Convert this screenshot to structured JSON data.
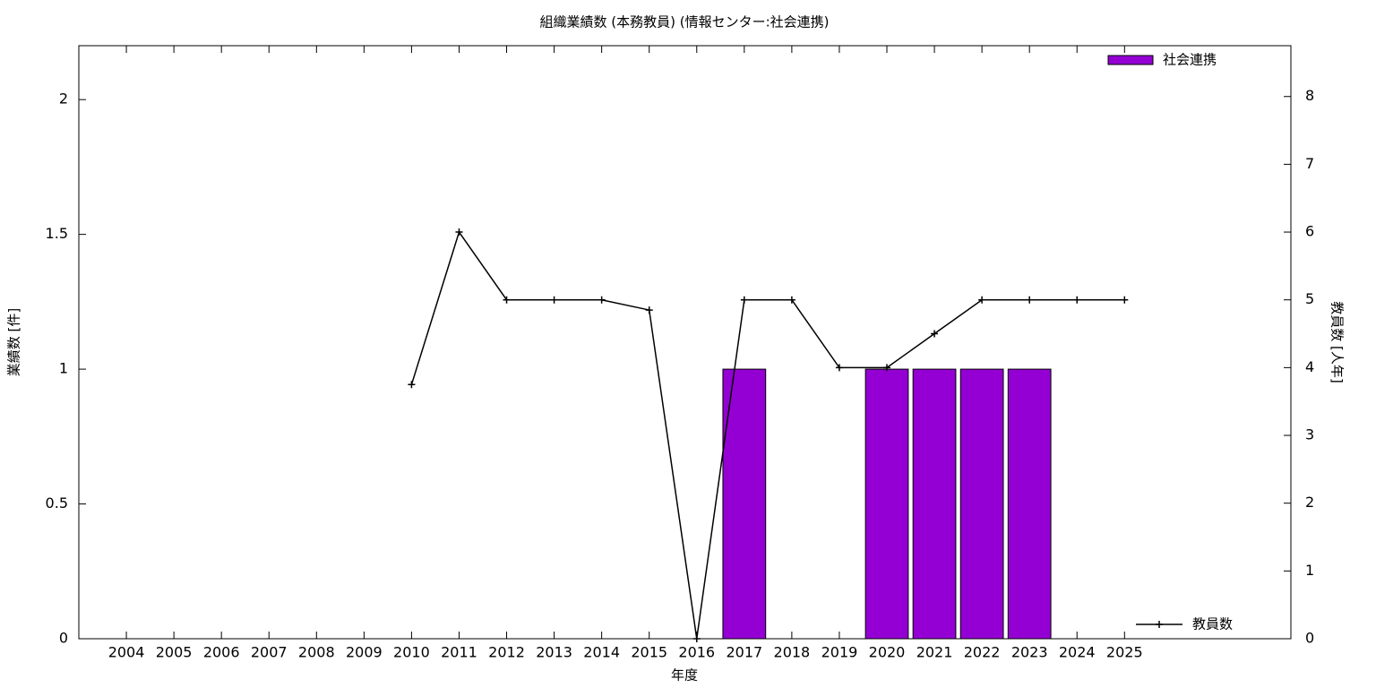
{
  "chart_data": {
    "type": "bar-line",
    "title": "組織業績数 (本務教員) (情報センター:社会連携)",
    "xlabel": "年度",
    "ylabel": "業績数 [件]",
    "y2label": "教員数 [人年]",
    "x": [
      2004,
      2005,
      2006,
      2007,
      2008,
      2009,
      2010,
      2011,
      2012,
      2013,
      2014,
      2015,
      2016,
      2017,
      2018,
      2019,
      2020,
      2021,
      2022,
      2023,
      2024,
      2025
    ],
    "xlim": [
      2003,
      2028.5
    ],
    "xticks": [
      2004,
      2005,
      2006,
      2007,
      2008,
      2009,
      2010,
      2011,
      2012,
      2013,
      2014,
      2015,
      2016,
      2017,
      2018,
      2019,
      2020,
      2021,
      2022,
      2023,
      2024,
      2025
    ],
    "ylim": [
      0,
      2.2
    ],
    "yticks": [
      0,
      0.5,
      1,
      1.5,
      2
    ],
    "y2lim": [
      0,
      8.75
    ],
    "y2ticks": [
      0,
      1,
      2,
      3,
      4,
      5,
      6,
      7,
      8
    ],
    "series": [
      {
        "name": "社会連携",
        "type": "bar",
        "color": "#9400d3",
        "legend": "top-right",
        "values": [
          0,
          0,
          0,
          0,
          0,
          0,
          0,
          0,
          0,
          0,
          0,
          0,
          0,
          1,
          0,
          0,
          1,
          1,
          1,
          1,
          0,
          0
        ]
      },
      {
        "name": "教員数",
        "type": "line",
        "axis": "y2",
        "color": "#000000",
        "legend": "bottom-right",
        "values": [
          null,
          null,
          null,
          null,
          null,
          null,
          3.75,
          6,
          5,
          5,
          5,
          4.85,
          0,
          5,
          5,
          4,
          4,
          4.5,
          5,
          5,
          5,
          5
        ]
      }
    ]
  }
}
